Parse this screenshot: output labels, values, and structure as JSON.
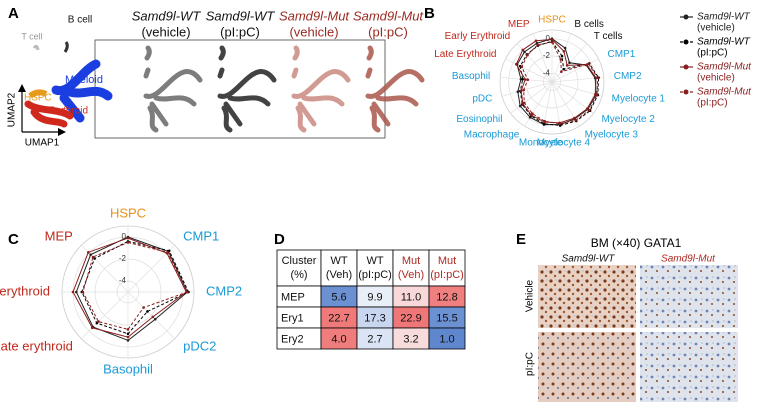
{
  "panels": {
    "a": {
      "label": "A",
      "groups": [
        {
          "name": "Samd9l-WT",
          "condition": "(vehicle)",
          "color": "#111111"
        },
        {
          "name": "Samd9l-WT",
          "condition": "(pI:pC)",
          "color": "#111111"
        },
        {
          "name": "Samd9l-Mut",
          "condition": "(vehicle)",
          "color": "#9b2a22"
        },
        {
          "name": "Samd9l-Mut",
          "condition": "(pI:pC)",
          "color": "#9b2a22"
        }
      ],
      "cell_labels": [
        {
          "text": "T cell",
          "color": "#999999"
        },
        {
          "text": "B cell",
          "color": "#111111"
        },
        {
          "text": "Myeloid",
          "color": "#1a3ee0"
        },
        {
          "text": "HSPC",
          "color": "#e89a1a"
        },
        {
          "text": "Erythroid",
          "color": "#d0281c"
        }
      ],
      "x_axis": "UMAP1",
      "y_axis": "UMAP2"
    },
    "b": {
      "label": "B",
      "chart_data": {
        "type": "radar",
        "categories": [
          "HSPC",
          "B cells",
          "T cells",
          "CMP1",
          "CMP2",
          "Myelocyte 1",
          "Myelocyte 2",
          "Myelocyte 3",
          "Myelocyte 4",
          "Monocyte",
          "Macrophage",
          "Eosinophil",
          "pDC",
          "Basophil",
          "Late Erythroid",
          "Early Erythroid",
          "MEP"
        ],
        "category_colors": [
          "#e8901a",
          "#111111",
          "#111111",
          "#1a9ad6",
          "#1a9ad6",
          "#1a9ad6",
          "#1a9ad6",
          "#1a9ad6",
          "#1a9ad6",
          "#1a9ad6",
          "#1a9ad6",
          "#1a9ad6",
          "#1a9ad6",
          "#1a9ad6",
          "#c0281c",
          "#c0281c",
          "#c0281c"
        ],
        "rlim": [
          -5,
          1
        ],
        "rticks": [
          0,
          -2,
          -4
        ],
        "series": [
          {
            "name": "Samd9l-WT",
            "condition": "(vehicle)",
            "color": "#222222",
            "line_style": "solid",
            "values": [
              0,
              -0.8,
              -2,
              -0.6,
              0,
              0.3,
              0.2,
              0,
              0,
              0,
              -0.2,
              -0.4,
              -0.9,
              -1.4,
              -0.5,
              -0.3,
              -0.2
            ]
          },
          {
            "name": "Samd9l-WT",
            "condition": "(pI:pC)",
            "color": "#000000",
            "line_style": "dashed",
            "values": [
              -0.3,
              -1.8,
              -3,
              -0.2,
              0.4,
              0.5,
              0.5,
              0.3,
              0.1,
              -0.1,
              -0.4,
              -0.7,
              -1.2,
              -1.6,
              -0.9,
              -0.7,
              -0.5
            ]
          },
          {
            "name": "Samd9l-Mut",
            "condition": "(vehicle)",
            "color": "#8a1d1d",
            "line_style": "solid",
            "values": [
              -0.1,
              -1.2,
              -2.4,
              -0.5,
              0.1,
              0.2,
              0.1,
              -0.1,
              -0.2,
              -0.3,
              -0.5,
              -0.8,
              -1.3,
              -1.9,
              -0.4,
              0,
              0.1
            ]
          },
          {
            "name": "Samd9l-Mut",
            "condition": "(pI:pC)",
            "color": "#8a1d1d",
            "line_style": "dashed",
            "values": [
              -0.4,
              -2.2,
              -3.4,
              -0.3,
              0.3,
              0.4,
              0.4,
              0.2,
              -0.1,
              -0.4,
              -0.7,
              -1,
              -1.6,
              -2.2,
              -1.1,
              -0.8,
              -0.4
            ]
          }
        ]
      }
    },
    "c": {
      "label": "C",
      "chart_data": {
        "type": "radar",
        "categories": [
          "HSPC",
          "CMP1",
          "CMP2",
          "pDC2",
          "Basophil",
          "Late erythroid",
          "Early erythroid",
          "MEP"
        ],
        "category_colors": [
          "#e8901a",
          "#1a9ad6",
          "#1a9ad6",
          "#1a9ad6",
          "#1a9ad6",
          "#c0281c",
          "#c0281c",
          "#c0281c"
        ],
        "rlim": [
          -5,
          1
        ],
        "rticks": [
          0,
          -2,
          -4
        ],
        "series": [
          {
            "color": "#222222",
            "line_style": "solid",
            "values": [
              0,
              0.2,
              0.4,
              -1.5,
              -0.6,
              -0.5,
              -0.3,
              -0.2
            ]
          },
          {
            "color": "#000000",
            "line_style": "dashed",
            "values": [
              -0.4,
              0.3,
              0.5,
              -2.5,
              -1.2,
              -1,
              -0.8,
              -0.7
            ]
          },
          {
            "color": "#8a1d1d",
            "line_style": "solid",
            "values": [
              -0.1,
              0,
              0.3,
              -1.8,
              -0.9,
              -0.4,
              0,
              0.1
            ]
          },
          {
            "color": "#8a1d1d",
            "line_style": "dashed",
            "values": [
              -0.5,
              0.1,
              0.4,
              -3,
              -1.6,
              -1.2,
              -0.9,
              -0.5
            ]
          }
        ]
      }
    },
    "d": {
      "label": "D",
      "table": {
        "header": [
          {
            "lines": [
              "Cluster",
              "(%)"
            ],
            "color": "#111111"
          },
          {
            "lines": [
              "WT",
              "(Veh)"
            ],
            "color": "#111111"
          },
          {
            "lines": [
              "WT",
              "(pI:pC)"
            ],
            "color": "#111111"
          },
          {
            "lines": [
              "Mut",
              "(Veh)"
            ],
            "color": "#b02a22"
          },
          {
            "lines": [
              "Mut",
              "(pI:pC)"
            ],
            "color": "#b02a22"
          }
        ],
        "rows": [
          [
            "MEP",
            "5.6",
            "9.9",
            "11.0",
            "12.8"
          ],
          [
            "Ery1",
            "22.7",
            "17.3",
            "22.9",
            "15.5"
          ],
          [
            "Ery2",
            "4.0",
            "2.7",
            "3.2",
            "1.0"
          ]
        ],
        "cell_colors": [
          [
            "#ffffff",
            "#6b91d2",
            "#e9eff9",
            "#f8d8d8",
            "#f07f7f"
          ],
          [
            "#ffffff",
            "#f07a7a",
            "#c8d6f0",
            "#f07777",
            "#6b91d2"
          ],
          [
            "#ffffff",
            "#f07d7d",
            "#dae4f5",
            "#f8dcdc",
            "#5f87ce"
          ]
        ]
      }
    },
    "e": {
      "label": "E",
      "title": "BM (×40) GATA1",
      "columns": [
        {
          "text": "Samd9l-WT",
          "color": "#111111"
        },
        {
          "text": "Samd9l-Mut",
          "color": "#b02a22"
        }
      ],
      "rows": [
        "Vehicle",
        "pI:pC"
      ]
    }
  }
}
